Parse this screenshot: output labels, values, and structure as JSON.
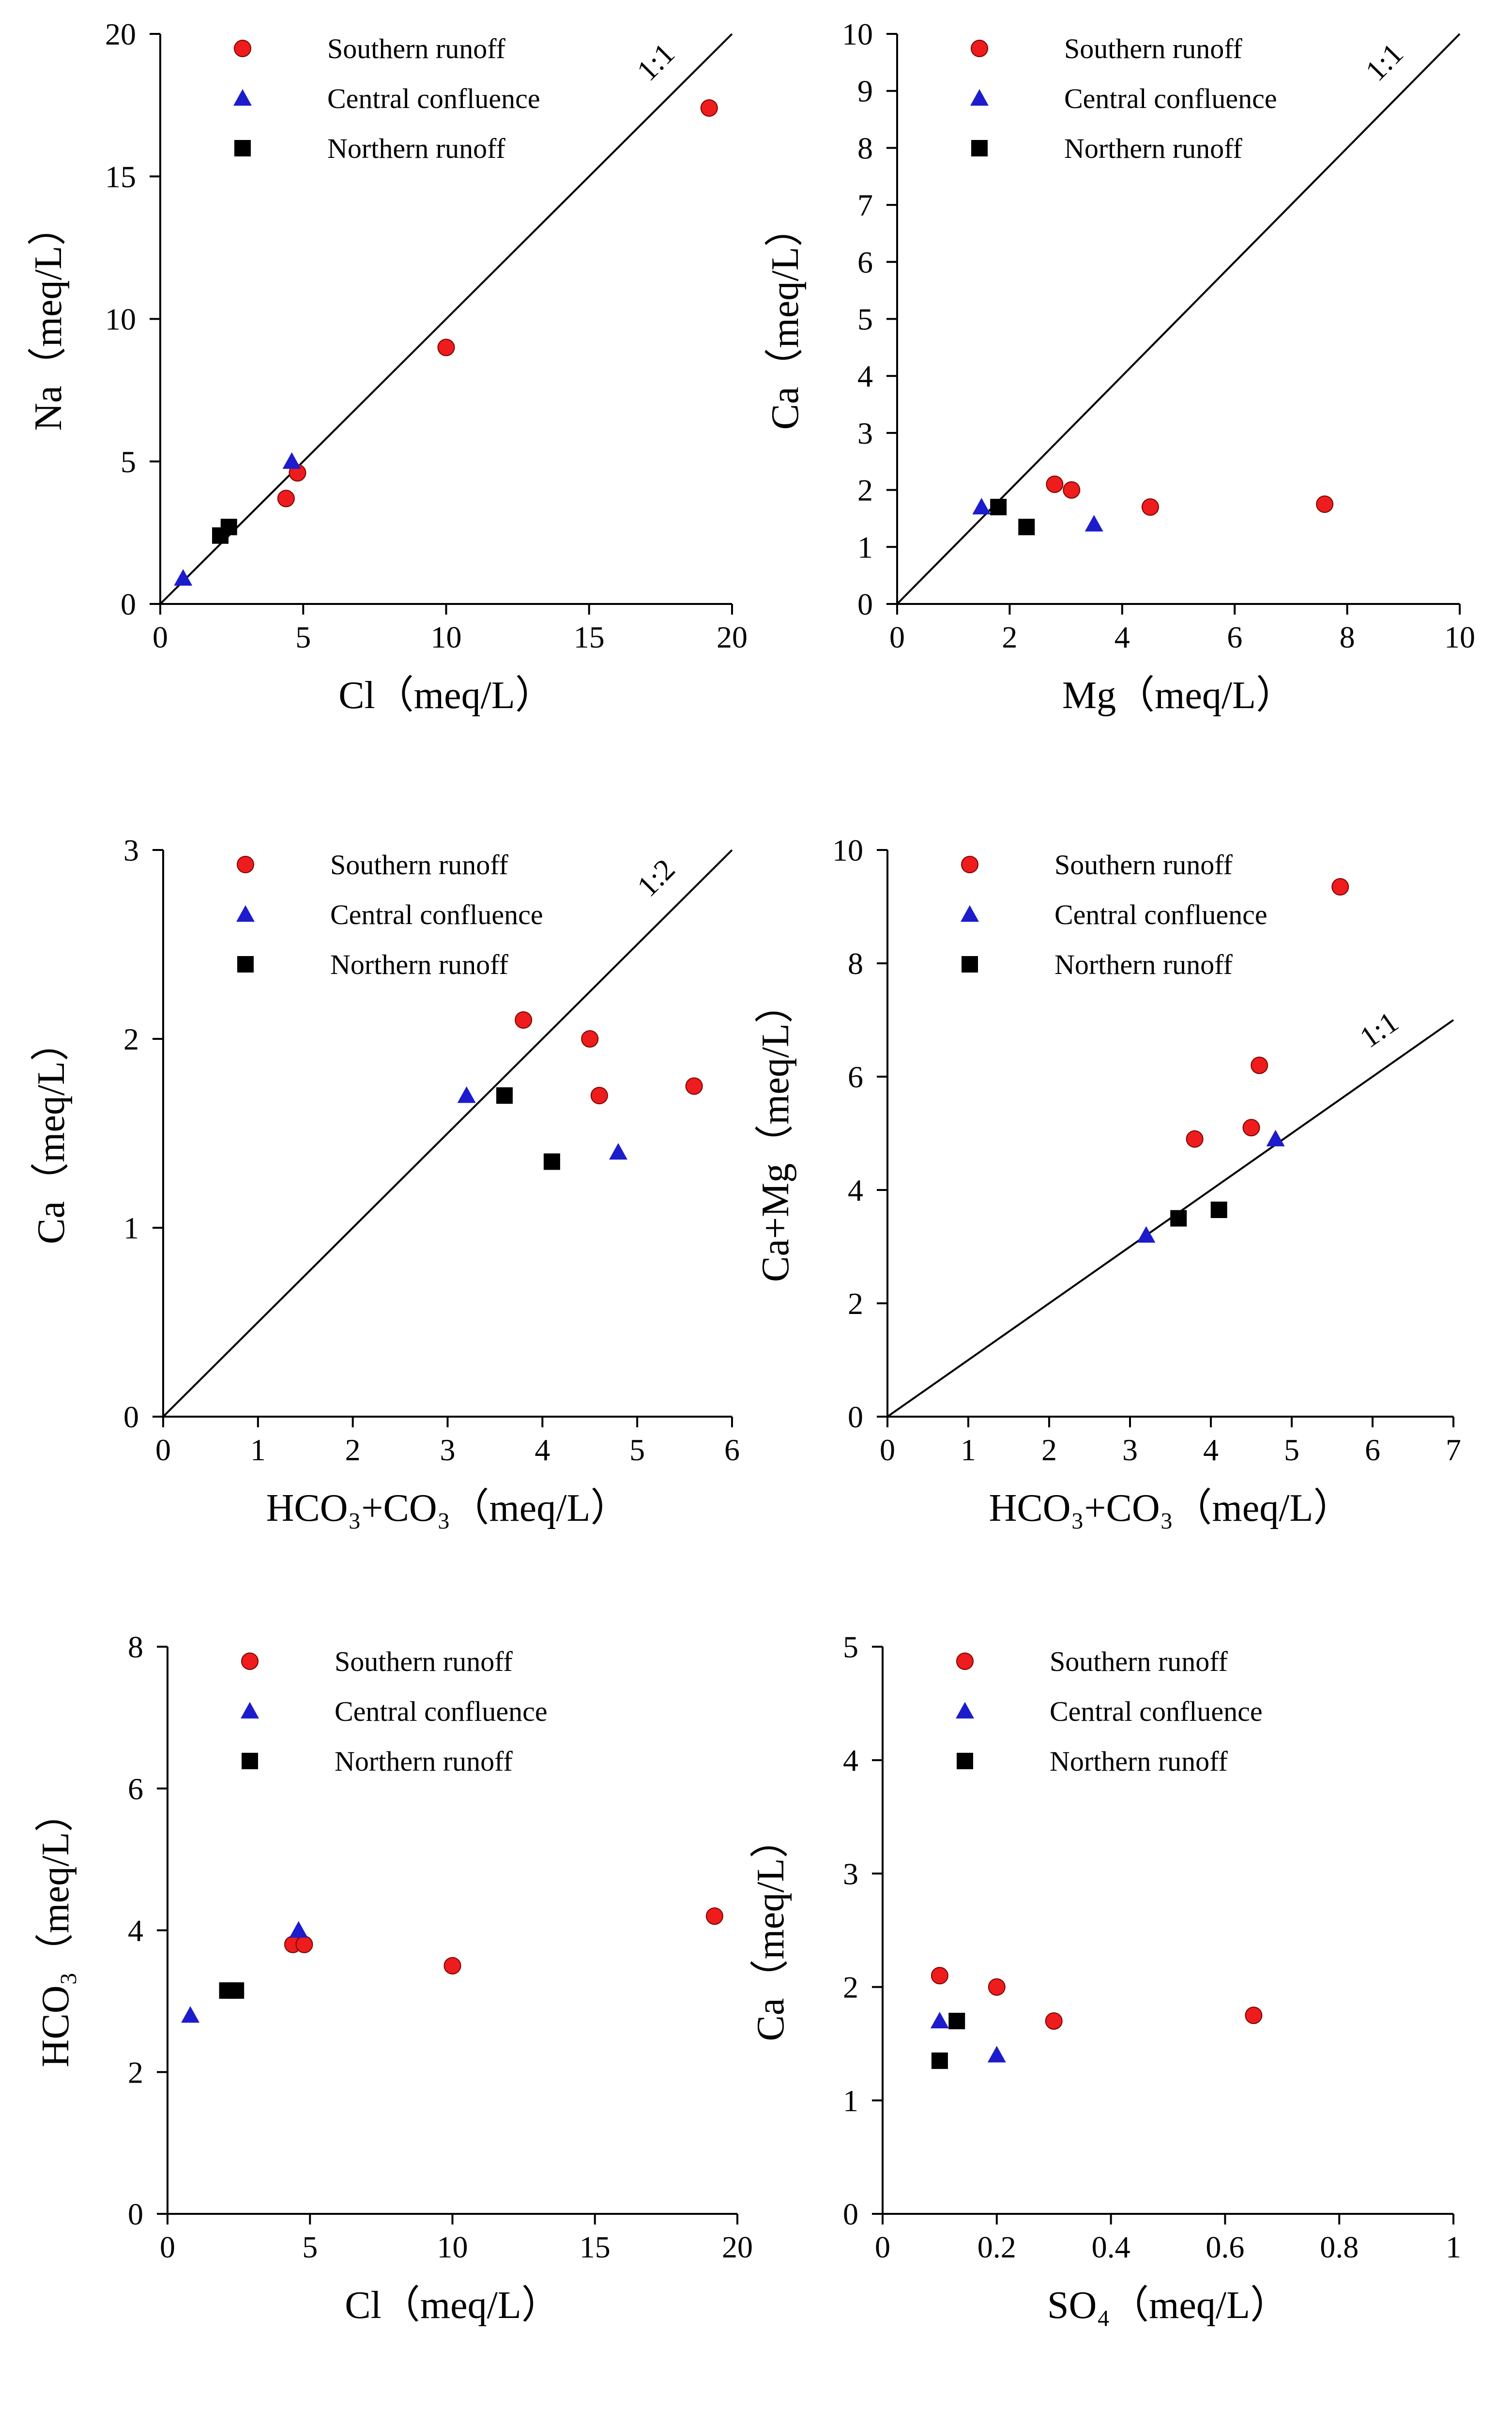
{
  "colors": {
    "southern": "#ee1c1c",
    "central": "#1c1ccc",
    "northern": "#000000",
    "axis": "#000000"
  },
  "legend": {
    "southern": "Southern runoff",
    "central": "Central confluence",
    "northern": "Northern runoff"
  },
  "chart_data": [
    {
      "type": "scatter",
      "title": "",
      "xlabel": "Cl（meq/L）",
      "ylabel": "Na（meq/L）",
      "xlim": [
        0,
        20
      ],
      "ylim": [
        0,
        20
      ],
      "xticks": [
        "0",
        "5",
        "10",
        "15",
        "20"
      ],
      "yticks": [
        "0",
        "5",
        "10",
        "15",
        "20"
      ],
      "reference_line": {
        "label": "1:1",
        "slope": 1
      },
      "series": [
        {
          "name": "Southern runoff",
          "points": [
            [
              19.2,
              17.4
            ],
            [
              10.0,
              9.0
            ],
            [
              4.4,
              3.7
            ],
            [
              4.8,
              4.6
            ]
          ]
        },
        {
          "name": "Central confluence",
          "points": [
            [
              4.6,
              5.0
            ],
            [
              0.8,
              0.9
            ]
          ]
        },
        {
          "name": "Northern runoff",
          "points": [
            [
              2.1,
              2.4
            ],
            [
              2.4,
              2.7
            ]
          ]
        }
      ]
    },
    {
      "type": "scatter",
      "title": "",
      "xlabel": "Mg（meq/L）",
      "ylabel": "Ca（meq/L）",
      "xlim": [
        0,
        10
      ],
      "ylim": [
        0,
        10
      ],
      "xticks": [
        "0",
        "2",
        "4",
        "6",
        "8",
        "10"
      ],
      "yticks": [
        "0",
        "1",
        "2",
        "3",
        "4",
        "5",
        "6",
        "7",
        "8",
        "9",
        "10"
      ],
      "reference_line": {
        "label": "1:1",
        "slope": 1
      },
      "series": [
        {
          "name": "Southern runoff",
          "points": [
            [
              2.8,
              2.1
            ],
            [
              3.1,
              2.0
            ],
            [
              4.5,
              1.7
            ],
            [
              7.6,
              1.75
            ]
          ]
        },
        {
          "name": "Central confluence",
          "points": [
            [
              1.5,
              1.7
            ],
            [
              3.5,
              1.4
            ]
          ]
        },
        {
          "name": "Northern runoff",
          "points": [
            [
              1.8,
              1.7
            ],
            [
              2.3,
              1.35
            ]
          ]
        }
      ]
    },
    {
      "type": "scatter",
      "title": "",
      "xlabel": "HCO₃+CO₃（meq/L）",
      "ylabel": "Ca（meq/L）",
      "xlim": [
        0,
        6
      ],
      "ylim": [
        0,
        3
      ],
      "xticks": [
        "0",
        "1",
        "2",
        "3",
        "4",
        "5",
        "6"
      ],
      "yticks": [
        "0",
        "1",
        "2",
        "3"
      ],
      "reference_line": {
        "label": "1:2",
        "slope": 0.5
      },
      "series": [
        {
          "name": "Southern runoff",
          "points": [
            [
              3.8,
              2.1
            ],
            [
              4.5,
              2.0
            ],
            [
              4.6,
              1.7
            ],
            [
              5.6,
              1.75
            ]
          ]
        },
        {
          "name": "Central confluence",
          "points": [
            [
              3.2,
              1.7
            ],
            [
              4.8,
              1.4
            ]
          ]
        },
        {
          "name": "Northern runoff",
          "points": [
            [
              3.6,
              1.7
            ],
            [
              4.1,
              1.35
            ]
          ]
        }
      ]
    },
    {
      "type": "scatter",
      "title": "",
      "xlabel": "HCO₃+CO₃（meq/L）",
      "ylabel": "Ca+Mg（meq/L）",
      "xlim": [
        0,
        7
      ],
      "ylim": [
        0,
        10
      ],
      "xticks": [
        "0",
        "1",
        "2",
        "3",
        "4",
        "5",
        "6",
        "7"
      ],
      "yticks": [
        "0",
        "2",
        "4",
        "6",
        "8",
        "10"
      ],
      "reference_line": {
        "label": "1:1",
        "slope": 1
      },
      "series": [
        {
          "name": "Southern runoff",
          "points": [
            [
              3.8,
              4.9
            ],
            [
              4.5,
              5.1
            ],
            [
              4.6,
              6.2
            ],
            [
              5.6,
              9.35
            ]
          ]
        },
        {
          "name": "Central confluence",
          "points": [
            [
              3.2,
              3.2
            ],
            [
              4.8,
              4.9
            ]
          ]
        },
        {
          "name": "Northern runoff",
          "points": [
            [
              3.6,
              3.5
            ],
            [
              4.1,
              3.65
            ]
          ]
        }
      ]
    },
    {
      "type": "scatter",
      "title": "",
      "xlabel": "Cl（meq/L）",
      "ylabel": "HCO₃（meq/L）",
      "xlim": [
        0,
        20
      ],
      "ylim": [
        0,
        8
      ],
      "xticks": [
        "0",
        "5",
        "10",
        "15",
        "20"
      ],
      "yticks": [
        "0",
        "2",
        "4",
        "6",
        "8"
      ],
      "reference_line": null,
      "series": [
        {
          "name": "Southern runoff",
          "points": [
            [
              4.4,
              3.8
            ],
            [
              4.8,
              3.8
            ],
            [
              10.0,
              3.5
            ],
            [
              19.2,
              4.2
            ]
          ]
        },
        {
          "name": "Central confluence",
          "points": [
            [
              4.6,
              4.0
            ],
            [
              0.8,
              2.8
            ]
          ]
        },
        {
          "name": "Northern runoff",
          "points": [
            [
              2.1,
              3.15
            ],
            [
              2.4,
              3.15
            ]
          ]
        }
      ]
    },
    {
      "type": "scatter",
      "title": "",
      "xlabel": "SO₄（meq/L）",
      "ylabel": "Ca（meq/L）",
      "xlim": [
        0,
        1
      ],
      "ylim": [
        0,
        5
      ],
      "xticks": [
        "0",
        "0.2",
        "0.4",
        "0.6",
        "0.8",
        "1"
      ],
      "yticks": [
        "0",
        "1",
        "2",
        "3",
        "4",
        "5"
      ],
      "reference_line": null,
      "series": [
        {
          "name": "Southern runoff",
          "points": [
            [
              0.1,
              2.1
            ],
            [
              0.2,
              2.0
            ],
            [
              0.3,
              1.7
            ],
            [
              0.65,
              1.75
            ]
          ]
        },
        {
          "name": "Central confluence",
          "points": [
            [
              0.1,
              1.7
            ],
            [
              0.2,
              1.4
            ]
          ]
        },
        {
          "name": "Northern runoff",
          "points": [
            [
              0.13,
              1.7
            ],
            [
              0.1,
              1.35
            ]
          ]
        }
      ]
    }
  ]
}
